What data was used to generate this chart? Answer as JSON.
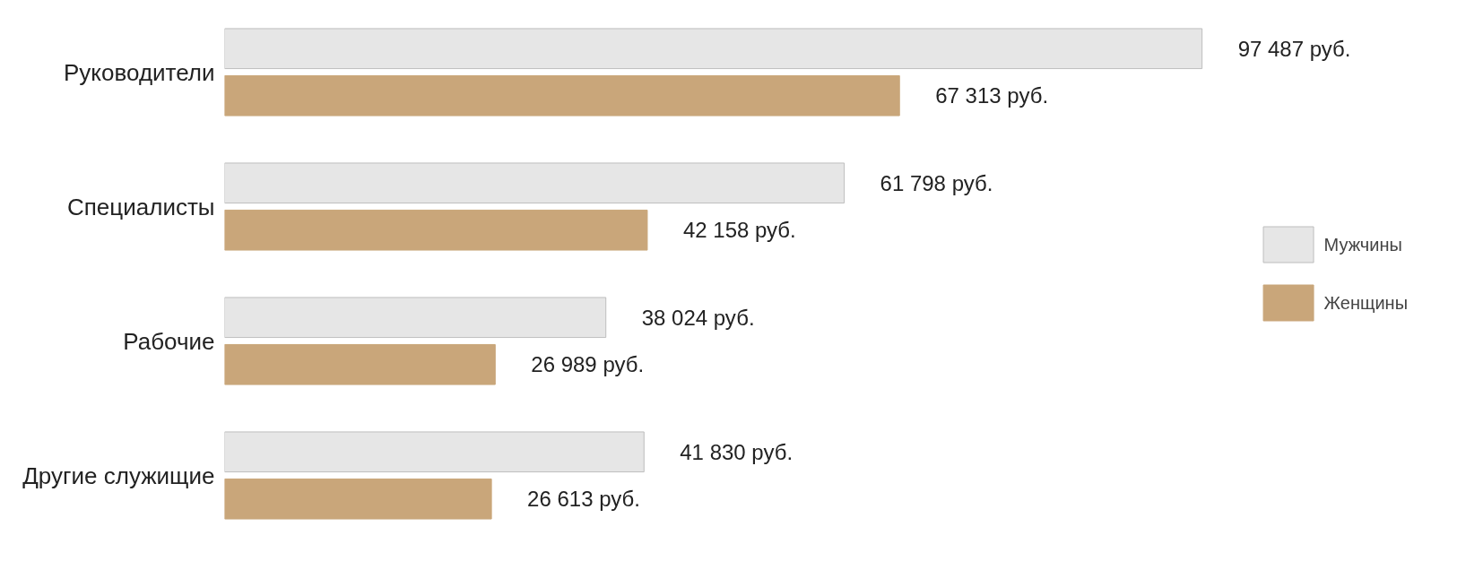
{
  "chart_data": {
    "type": "bar",
    "orientation": "horizontal",
    "categories": [
      "Руководители",
      "Специалисты",
      "Рабочие",
      "Другие служищие"
    ],
    "series": [
      {
        "name": "Мужчины",
        "color": "#e6e6e6",
        "values": [
          97487,
          61798,
          38024,
          41830
        ],
        "value_labels": [
          "97 487 руб.",
          "61 798 руб.",
          "38 024 руб.",
          "41 830 руб."
        ]
      },
      {
        "name": "Женщины",
        "color": "#c9a67a",
        "values": [
          67313,
          42158,
          26989,
          26613
        ],
        "value_labels": [
          "67 313 руб.",
          "42 158 руб.",
          "26 989 руб.",
          "26 613 руб."
        ]
      }
    ],
    "tick_labels": "y",
    "grid": false,
    "legend": "right"
  }
}
